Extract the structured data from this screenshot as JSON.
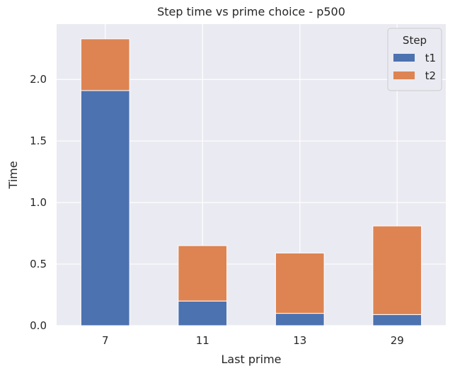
{
  "chart_data": {
    "type": "bar",
    "stacked": true,
    "title": "Step time vs prime choice - p500",
    "xlabel": "Last prime",
    "ylabel": "Time",
    "categories": [
      "7",
      "11",
      "13",
      "29"
    ],
    "series": [
      {
        "name": "t1",
        "values": [
          1.91,
          0.2,
          0.1,
          0.09
        ],
        "color": "#4c72b0"
      },
      {
        "name": "t2",
        "values": [
          0.42,
          0.45,
          0.49,
          0.72
        ],
        "color": "#dd8452"
      }
    ],
    "ylim": [
      0,
      2.45
    ],
    "yticks": [
      "0.0",
      "0.5",
      "1.0",
      "1.5",
      "2.0"
    ],
    "grid": true,
    "legend": {
      "title": "Step",
      "position": "top-right"
    },
    "colors": {
      "plot_background": "#eaeaf2",
      "grid": "#ffffff"
    }
  }
}
